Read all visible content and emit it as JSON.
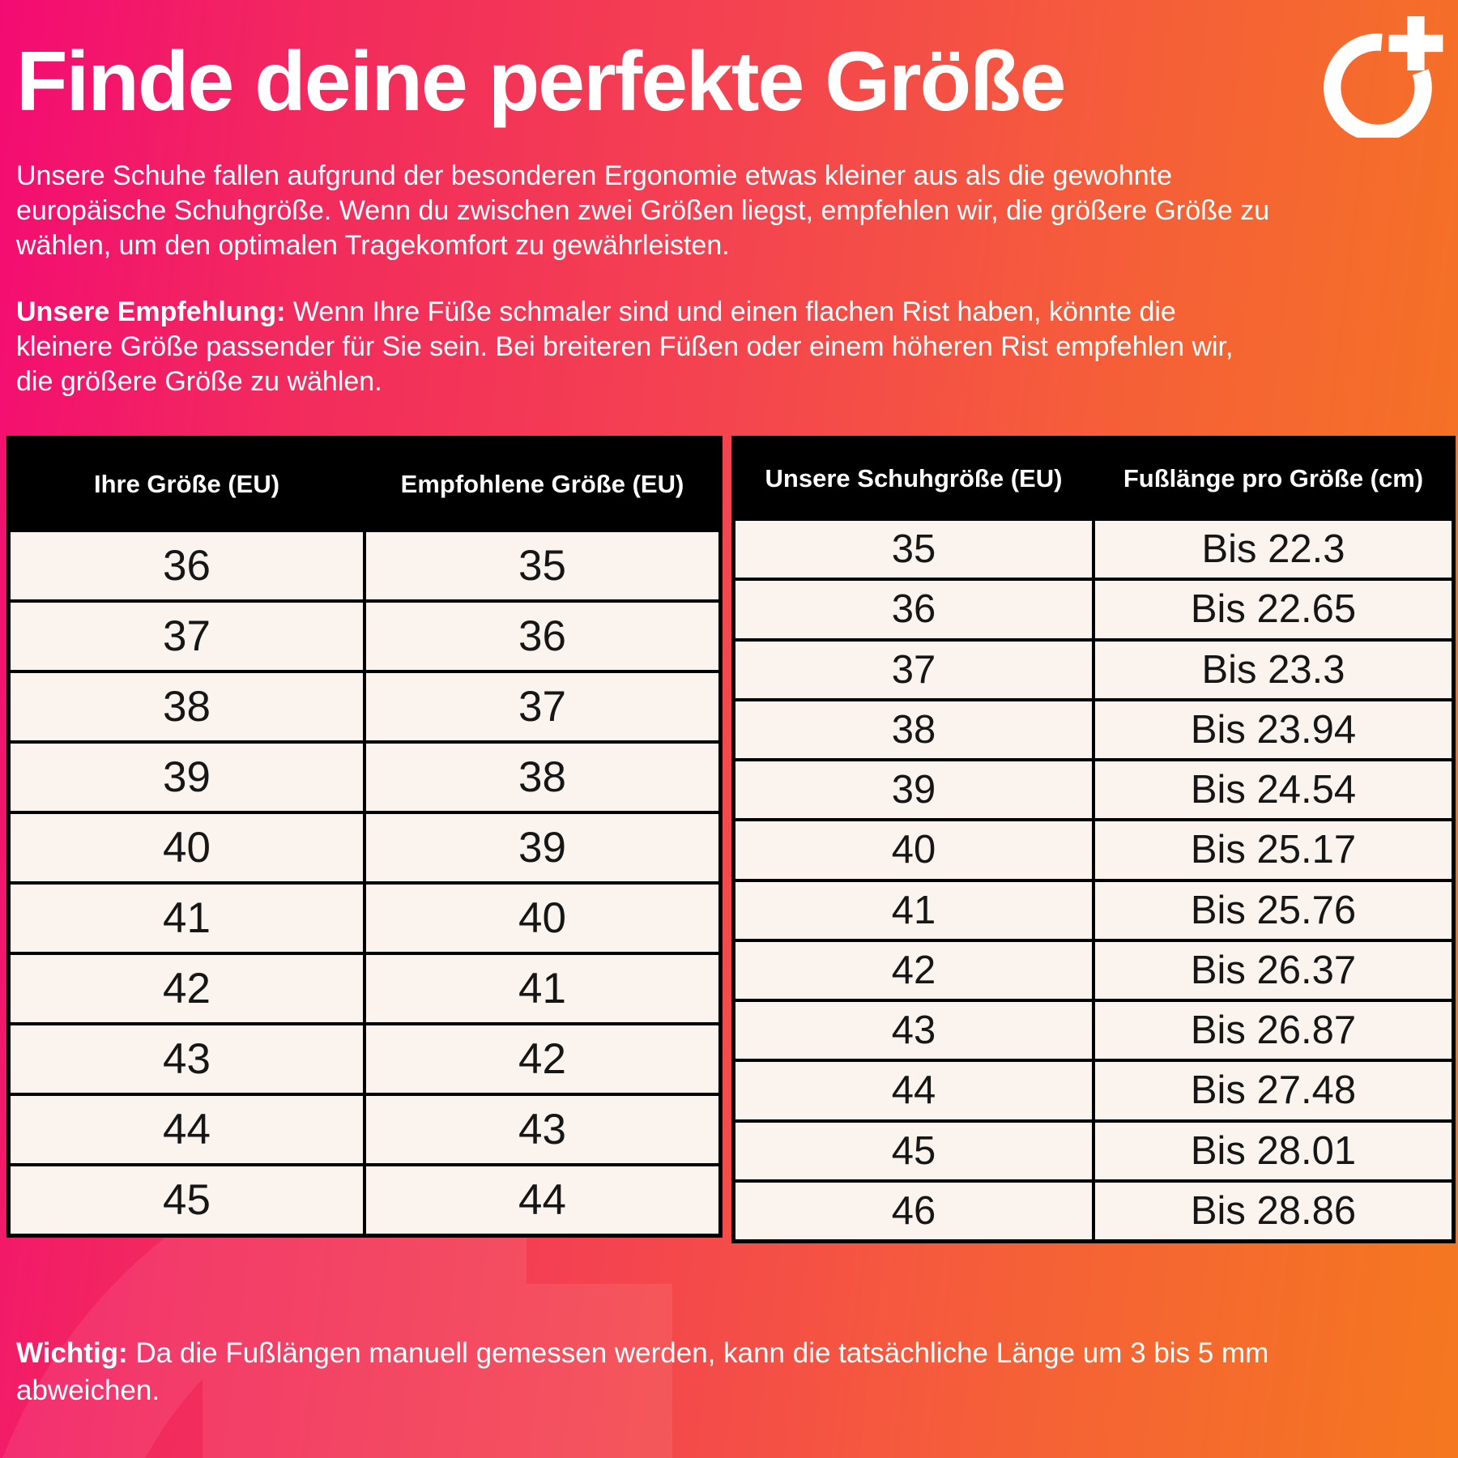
{
  "page": {
    "title": "Finde deine perfekte Größe"
  },
  "intro": {
    "paragraph1": "Unsere Schuhe fallen aufgrund der besonderen Ergonomie etwas kleiner aus als die gewohnte europäische Schuhgröße. Wenn du zwischen zwei Größen liegst, empfehlen wir, die größere Größe zu wählen, um den optimalen Tragekomfort zu gewährleisten.",
    "recommendation_label": "Unsere Empfehlung:",
    "recommendation_text": " Wenn Ihre Füße schmaler sind und einen flachen Rist haben, könnte die kleinere Größe passender für Sie sein. Bei breiteren Füßen oder einem höheren Rist empfehlen wir, die größere Größe zu wählen."
  },
  "size_table": {
    "headers": [
      "Ihre Größe (EU)",
      "Empfohlene Größe (EU)"
    ],
    "rows": [
      [
        "36",
        "35"
      ],
      [
        "37",
        "36"
      ],
      [
        "38",
        "37"
      ],
      [
        "39",
        "38"
      ],
      [
        "40",
        "39"
      ],
      [
        "41",
        "40"
      ],
      [
        "42",
        "41"
      ],
      [
        "43",
        "42"
      ],
      [
        "44",
        "43"
      ],
      [
        "45",
        "44"
      ]
    ]
  },
  "length_table": {
    "headers": [
      "Unsere Schuhgröße (EU)",
      "Fußlänge pro Größe (cm)"
    ],
    "rows": [
      [
        "35",
        "Bis 22.3"
      ],
      [
        "36",
        "Bis 22.65"
      ],
      [
        "37",
        "Bis 23.3"
      ],
      [
        "38",
        "Bis 23.94"
      ],
      [
        "39",
        "Bis 24.54"
      ],
      [
        "40",
        "Bis 25.17"
      ],
      [
        "41",
        "Bis 25.76"
      ],
      [
        "42",
        "Bis 26.37"
      ],
      [
        "43",
        "Bis 26.87"
      ],
      [
        "44",
        "Bis 27.48"
      ],
      [
        "45",
        "Bis 28.01"
      ],
      [
        "46",
        "Bis 28.86"
      ]
    ]
  },
  "footnote": {
    "label": "Wichtig:",
    "text": " Da die Fußlängen manuell gemessen werden, kann die tatsächliche Länge um 3 bis 5 mm abweichen."
  },
  "icons": {
    "brand_logo": "circle-plus-logo",
    "watermark": "circle-plus-watermark"
  },
  "colors": {
    "gradient_start": "#f30b73",
    "gradient_mid": "#f44350",
    "gradient_end": "#f5781f",
    "table_header_bg": "#000000",
    "table_cell_bg": "#faf3ee",
    "text_on_gradient": "#ffffff",
    "cell_text": "#161616"
  }
}
